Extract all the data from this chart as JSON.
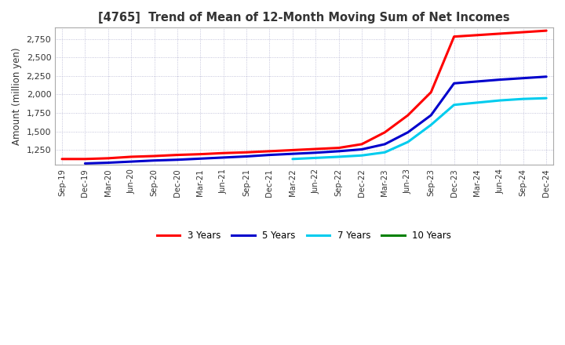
{
  "title": "[4765]  Trend of Mean of 12-Month Moving Sum of Net Incomes",
  "ylabel": "Amount (million yen)",
  "background_color": "#ffffff",
  "plot_bg_color": "#ffffff",
  "grid_color": "#aaaacc",
  "x_labels": [
    "Sep-19",
    "Dec-19",
    "Mar-20",
    "Jun-20",
    "Sep-20",
    "Dec-20",
    "Mar-21",
    "Jun-21",
    "Sep-21",
    "Dec-21",
    "Mar-22",
    "Jun-22",
    "Sep-22",
    "Dec-22",
    "Mar-23",
    "Jun-23",
    "Sep-23",
    "Dec-23",
    "Mar-24",
    "Jun-24",
    "Sep-24",
    "Dec-24"
  ],
  "ylim": [
    1050,
    2900
  ],
  "yticks": [
    1250,
    1500,
    1750,
    2000,
    2250,
    2500,
    2750
  ],
  "series": {
    "3 Years": {
      "color": "#ff0000",
      "values": [
        1130,
        1130,
        1140,
        1160,
        1170,
        1185,
        1195,
        1210,
        1220,
        1235,
        1250,
        1265,
        1280,
        1330,
        1490,
        1720,
        2030,
        2780,
        2800,
        2820,
        2840,
        2860
      ]
    },
    "5 Years": {
      "color": "#0000cc",
      "values": [
        null,
        1070,
        1080,
        1095,
        1110,
        1120,
        1135,
        1150,
        1165,
        1185,
        1200,
        1215,
        1235,
        1260,
        1330,
        1490,
        1720,
        2150,
        2175,
        2200,
        2220,
        2240
      ]
    },
    "7 Years": {
      "color": "#00ccee",
      "values": [
        null,
        null,
        null,
        null,
        null,
        null,
        null,
        null,
        null,
        null,
        1130,
        1145,
        1160,
        1178,
        1220,
        1360,
        1590,
        1860,
        1890,
        1920,
        1940,
        1950
      ]
    },
    "10 Years": {
      "color": "#008000",
      "values": [
        null,
        null,
        null,
        null,
        null,
        null,
        null,
        null,
        null,
        null,
        null,
        null,
        null,
        null,
        null,
        null,
        null,
        null,
        null,
        null,
        null,
        null
      ]
    }
  },
  "legend_labels": [
    "3 Years",
    "5 Years",
    "7 Years",
    "10 Years"
  ],
  "legend_colors": [
    "#ff0000",
    "#0000cc",
    "#00ccee",
    "#008000"
  ]
}
